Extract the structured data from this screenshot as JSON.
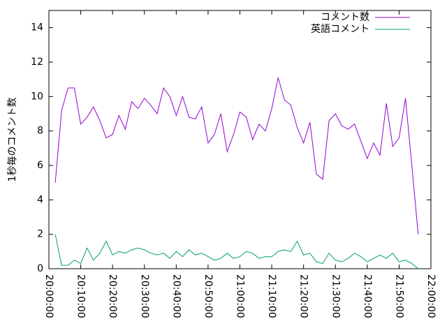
{
  "chart_data": {
    "type": "line",
    "y_label": "1秒毎のコメント数",
    "x": [
      "20:02:00",
      "20:04:00",
      "20:06:00",
      "20:08:00",
      "20:10:00",
      "20:12:00",
      "20:14:00",
      "20:16:00",
      "20:18:00",
      "20:20:00",
      "20:22:00",
      "20:24:00",
      "20:26:00",
      "20:28:00",
      "20:30:00",
      "20:32:00",
      "20:34:00",
      "20:36:00",
      "20:38:00",
      "20:40:00",
      "20:42:00",
      "20:44:00",
      "20:46:00",
      "20:48:00",
      "20:50:00",
      "20:52:00",
      "20:54:00",
      "20:56:00",
      "20:58:00",
      "21:00:00",
      "21:02:00",
      "21:04:00",
      "21:06:00",
      "21:08:00",
      "21:10:00",
      "21:12:00",
      "21:14:00",
      "21:16:00",
      "21:18:00",
      "21:20:00",
      "21:22:00",
      "21:24:00",
      "21:26:00",
      "21:28:00",
      "21:30:00",
      "21:32:00",
      "21:34:00",
      "21:36:00",
      "21:38:00",
      "21:40:00",
      "21:42:00",
      "21:44:00",
      "21:46:00",
      "21:48:00",
      "21:50:00",
      "21:52:00",
      "21:54:00",
      "21:56:00"
    ],
    "series": [
      {
        "name": "コメント数",
        "color": "#9400d3",
        "values": [
          5.0,
          9.2,
          10.5,
          10.5,
          8.4,
          8.8,
          9.4,
          8.6,
          7.6,
          7.8,
          8.9,
          8.1,
          9.7,
          9.3,
          9.9,
          9.5,
          9.0,
          10.5,
          10.0,
          8.9,
          10.0,
          8.8,
          8.7,
          9.4,
          7.3,
          7.8,
          9.0,
          6.8,
          7.8,
          9.1,
          8.8,
          7.5,
          8.4,
          8.0,
          9.3,
          11.1,
          9.8,
          9.5,
          8.2,
          7.3,
          8.5,
          5.5,
          5.2,
          8.6,
          9.0,
          8.3,
          8.1,
          8.4,
          7.4,
          6.4,
          7.3,
          6.6,
          9.6,
          7.1,
          7.6,
          9.9,
          6.0,
          2.0
        ]
      },
      {
        "name": "英語コメント",
        "color": "#009e73",
        "values": [
          2.0,
          0.2,
          0.2,
          0.5,
          0.3,
          1.2,
          0.5,
          0.9,
          1.6,
          0.8,
          1.0,
          0.9,
          1.1,
          1.2,
          1.1,
          0.9,
          0.8,
          0.9,
          0.6,
          1.0,
          0.7,
          1.1,
          0.8,
          0.9,
          0.7,
          0.5,
          0.6,
          0.9,
          0.6,
          0.7,
          1.0,
          0.9,
          0.6,
          0.7,
          0.7,
          1.0,
          1.1,
          1.0,
          1.6,
          0.8,
          0.9,
          0.4,
          0.3,
          0.9,
          0.5,
          0.4,
          0.6,
          0.9,
          0.7,
          0.4,
          0.6,
          0.8,
          0.6,
          0.9,
          0.4,
          0.5,
          0.3,
          0.0
        ]
      }
    ],
    "xlim": [
      "20:00:00",
      "22:00:00"
    ],
    "xticks": [
      "20:00:00",
      "20:10:00",
      "20:20:00",
      "20:30:00",
      "20:40:00",
      "20:50:00",
      "21:00:00",
      "21:10:00",
      "21:20:00",
      "21:30:00",
      "21:40:00",
      "21:50:00",
      "22:00:00"
    ],
    "ylim": [
      0,
      15
    ],
    "yticks": [
      0,
      2,
      4,
      6,
      8,
      10,
      12,
      14
    ],
    "legend": "top-right"
  }
}
